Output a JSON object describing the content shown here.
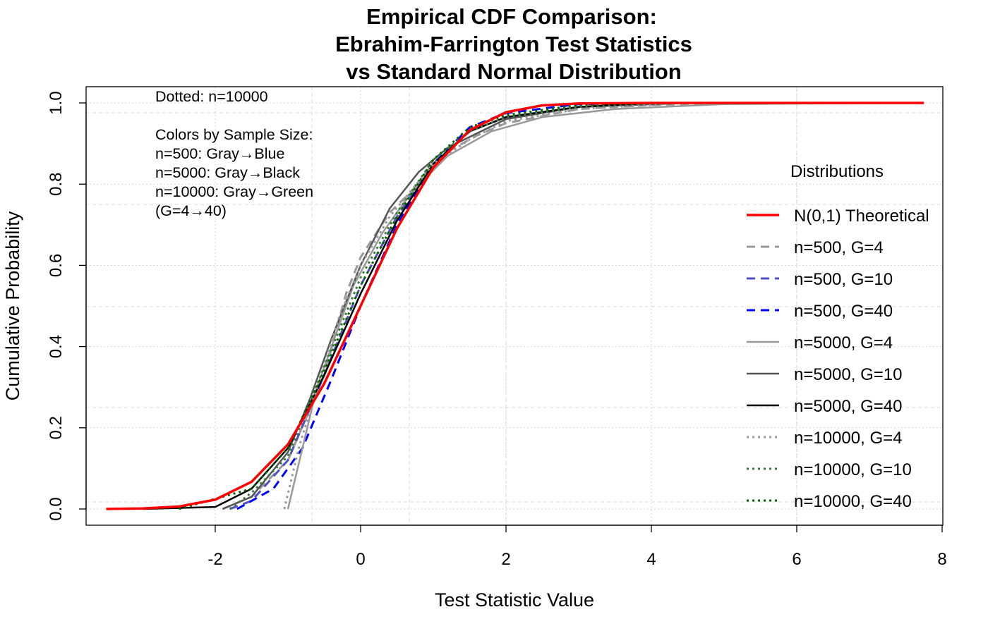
{
  "chart_data": {
    "type": "line",
    "title": [
      "Empirical CDF Comparison:",
      "Ebrahim-Farrington Test Statistics",
      "vs Standard Normal Distribution"
    ],
    "xlabel": "Test Statistic Value",
    "ylabel": "Cumulative Probability",
    "xlim": [
      -3.78,
      8.0
    ],
    "ylim": [
      -0.04,
      1.04
    ],
    "xticks": [
      -2,
      0,
      2,
      4,
      6,
      8
    ],
    "xtick_labels": [
      "-2",
      "0",
      "2",
      "4",
      "6",
      "8"
    ],
    "yticks": [
      0.0,
      0.2,
      0.4,
      0.6,
      0.8,
      1.0
    ],
    "ytick_labels": [
      "0.0",
      "0.2",
      "0.4",
      "0.6",
      "0.8",
      "1.0"
    ],
    "grid": true,
    "annotations": [
      "Dotted: n=10000",
      "Colors by Sample Size:",
      "n=500: Gray→Blue",
      "n=5000: Gray→Black",
      "n=10000: Gray→Green",
      "(G=4→40)"
    ],
    "legend": {
      "title": "Distributions",
      "placement": "right"
    },
    "series": [
      {
        "name": "N(0,1) Theoretical",
        "color": "#ff0000",
        "style": "solid",
        "width": 3.5,
        "x": [
          -3.5,
          -3,
          -2.5,
          -2,
          -1.5,
          -1,
          -0.5,
          0,
          0.5,
          1,
          1.5,
          2,
          2.5,
          3,
          4,
          7.75
        ],
        "y": [
          0.0002,
          0.0013,
          0.006,
          0.023,
          0.067,
          0.159,
          0.309,
          0.5,
          0.691,
          0.841,
          0.933,
          0.977,
          0.994,
          0.9987,
          1,
          1
        ]
      },
      {
        "name": "n=500, G=4",
        "color": "#999999",
        "style": "dashed",
        "width": 3,
        "x": [
          -1.9,
          -1.5,
          -1,
          -0.5,
          -0.2,
          0,
          0.4,
          0.8,
          1.2,
          1.6,
          2,
          3,
          4,
          5.5,
          7.5
        ],
        "y": [
          0,
          0.03,
          0.12,
          0.33,
          0.53,
          0.62,
          0.73,
          0.8,
          0.88,
          0.92,
          0.95,
          0.985,
          0.995,
          1,
          1
        ]
      },
      {
        "name": "n=500, G=10",
        "color": "#4f4fc4",
        "style": "dashed",
        "width": 3,
        "x": [
          -1.8,
          -1.5,
          -1,
          -0.5,
          0,
          0.5,
          1,
          1.5,
          2,
          3,
          4,
          7.5
        ],
        "y": [
          0,
          0.02,
          0.12,
          0.33,
          0.55,
          0.72,
          0.85,
          0.93,
          0.965,
          0.99,
          1,
          1
        ]
      },
      {
        "name": "n=500, G=40",
        "color": "#0000ff",
        "style": "dashed",
        "width": 3,
        "x": [
          -1.7,
          -1.2,
          -0.8,
          -0.4,
          0,
          0.5,
          1,
          1.5,
          2,
          3,
          4,
          7.5
        ],
        "y": [
          0,
          0.05,
          0.15,
          0.32,
          0.5,
          0.7,
          0.85,
          0.94,
          0.975,
          0.997,
          1,
          1
        ]
      },
      {
        "name": "n=5000, G=4",
        "color": "#999999",
        "style": "solid",
        "width": 2.5,
        "x": [
          -1.0,
          -0.8,
          -0.6,
          -0.4,
          -0.1,
          0.3,
          0.7,
          1.2,
          1.8,
          2.5,
          3.5,
          5,
          7.5
        ],
        "y": [
          0,
          0.15,
          0.3,
          0.4,
          0.55,
          0.68,
          0.78,
          0.87,
          0.93,
          0.965,
          0.985,
          0.997,
          1
        ]
      },
      {
        "name": "n=5000, G=10",
        "color": "#555555",
        "style": "solid",
        "width": 2.5,
        "x": [
          -1.9,
          -1.5,
          -1,
          -0.7,
          -0.4,
          0,
          0.4,
          0.8,
          1.2,
          2,
          3,
          4.5,
          7.5
        ],
        "y": [
          0,
          0.03,
          0.14,
          0.27,
          0.42,
          0.6,
          0.74,
          0.83,
          0.89,
          0.96,
          0.99,
          1,
          1
        ]
      },
      {
        "name": "n=5000, G=40",
        "color": "#000000",
        "style": "solid",
        "width": 2.5,
        "x": [
          -3,
          -2,
          -1.5,
          -1,
          -0.5,
          0,
          0.5,
          1,
          1.5,
          2,
          3,
          4,
          7.5
        ],
        "y": [
          0,
          0.005,
          0.05,
          0.15,
          0.33,
          0.53,
          0.71,
          0.85,
          0.93,
          0.965,
          0.99,
          1,
          1
        ]
      },
      {
        "name": "n=10000, G=4",
        "color": "#999999",
        "style": "dotted",
        "width": 3,
        "x": [
          -1.05,
          -0.85,
          -0.6,
          -0.3,
          0,
          0.4,
          1,
          1.5,
          2,
          3,
          4.5,
          7.5
        ],
        "y": [
          0,
          0.15,
          0.3,
          0.47,
          0.6,
          0.72,
          0.85,
          0.91,
          0.955,
          0.985,
          1,
          1
        ]
      },
      {
        "name": "n=10000, G=10",
        "color": "#3d7a3d",
        "style": "dotted",
        "width": 3,
        "x": [
          -1.8,
          -1.5,
          -1,
          -0.5,
          0,
          0.5,
          1,
          1.5,
          2,
          3,
          4,
          7.5
        ],
        "y": [
          0,
          0.04,
          0.13,
          0.35,
          0.57,
          0.73,
          0.86,
          0.93,
          0.965,
          0.99,
          1,
          1
        ]
      },
      {
        "name": "n=10000, G=40",
        "color": "#006400",
        "style": "dotted",
        "width": 3,
        "x": [
          -2.5,
          -1.5,
          -1,
          -0.5,
          0,
          0.5,
          1,
          1.5,
          2,
          3,
          4,
          7.5
        ],
        "y": [
          0,
          0.05,
          0.15,
          0.34,
          0.55,
          0.72,
          0.86,
          0.94,
          0.97,
          0.995,
          1,
          1
        ]
      }
    ]
  }
}
